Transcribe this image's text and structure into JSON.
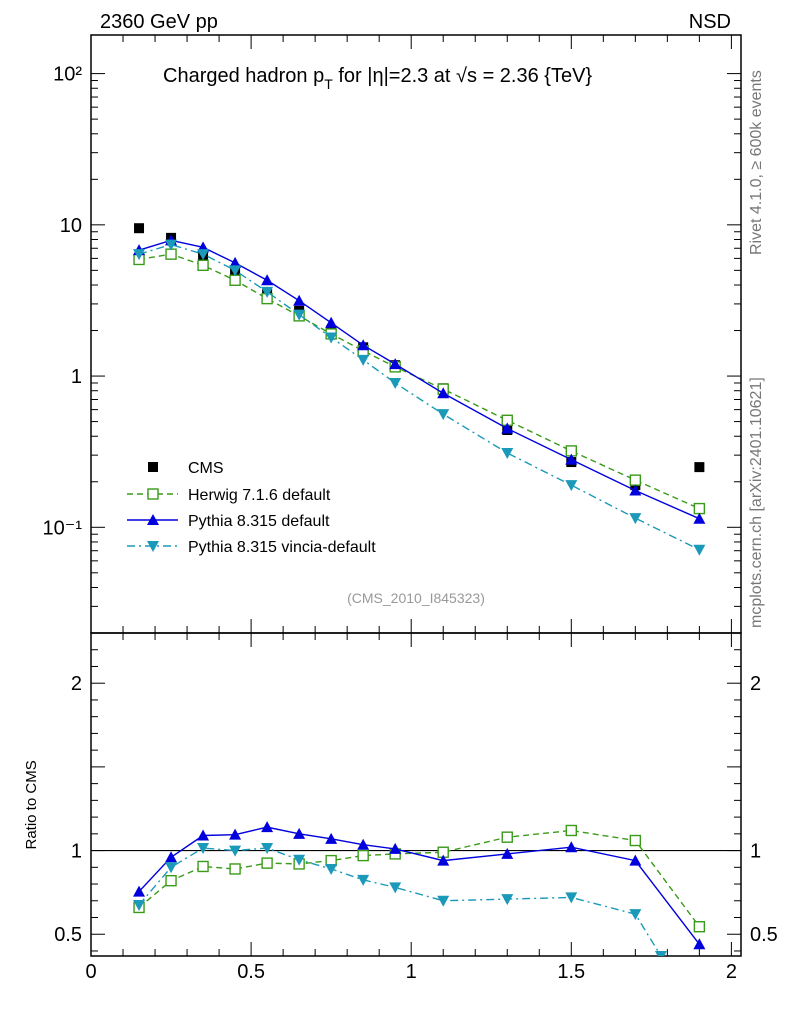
{
  "header": {
    "left": "2360 GeV pp",
    "right": "NSD"
  },
  "side_labels": {
    "rivet": "Rivet 4.1.0, ≥ 600k events",
    "mcplots": "mcplots.cern.ch [arXiv:2401.10621]"
  },
  "title_parts": {
    "a": "Charged hadron p",
    "sub": "T",
    "b": " for |η|=2.3 at √s = 2.36 {TeV}"
  },
  "analysis_tag": "(CMS_2010_I845323)",
  "colors": {
    "cms": "#000000",
    "herwig": "#3a9a1a",
    "pythia": "#0000dd",
    "vincia": "#1a9ab8"
  },
  "chart_data": [
    {
      "type": "scatter",
      "name": "main-spectrum",
      "yscale": "log",
      "xlim": [
        0,
        2.03
      ],
      "ylim": [
        0.02,
        180
      ],
      "ytick_labels": [
        "10⁻¹",
        "1",
        "10",
        "10²"
      ],
      "legend_position": "bottom-left",
      "series": [
        {
          "name": "CMS",
          "style": "square-filled",
          "x": [
            0.15,
            0.25,
            0.35,
            0.45,
            0.55,
            0.65,
            0.75,
            0.85,
            0.95,
            1.1,
            1.3,
            1.5,
            1.7,
            1.9
          ],
          "y": [
            9.5,
            8.2,
            6.2,
            5.0,
            3.5,
            2.7,
            2.0,
            1.55,
            1.18,
            0.83,
            0.44,
            0.27,
            0.19,
            0.25
          ]
        },
        {
          "name": "Herwig 7.1.6 default",
          "style": "square-open-dashed",
          "x": [
            0.15,
            0.25,
            0.35,
            0.45,
            0.55,
            0.65,
            0.75,
            0.85,
            0.95,
            1.1,
            1.3,
            1.5,
            1.7,
            1.9
          ],
          "y": [
            5.9,
            6.4,
            5.4,
            4.3,
            3.25,
            2.5,
            1.9,
            1.47,
            1.15,
            0.82,
            0.51,
            0.32,
            0.205,
            0.133
          ]
        },
        {
          "name": "Pythia 8.315 default",
          "style": "triangle-up-solid",
          "x": [
            0.15,
            0.25,
            0.35,
            0.45,
            0.55,
            0.65,
            0.75,
            0.85,
            0.95,
            1.1,
            1.3,
            1.5,
            1.7,
            1.9
          ],
          "y": [
            6.8,
            7.9,
            7.1,
            5.6,
            4.3,
            3.15,
            2.25,
            1.6,
            1.2,
            0.77,
            0.45,
            0.28,
            0.175,
            0.114
          ]
        },
        {
          "name": "Pythia 8.315 vincia-default",
          "style": "triangle-down-dashdot",
          "x": [
            0.15,
            0.25,
            0.35,
            0.45,
            0.55,
            0.65,
            0.75,
            0.85,
            0.95,
            1.1,
            1.3,
            1.5,
            1.7,
            1.9
          ],
          "y": [
            6.4,
            7.4,
            6.4,
            5.0,
            3.6,
            2.55,
            1.8,
            1.28,
            0.9,
            0.56,
            0.31,
            0.19,
            0.115,
            0.071
          ]
        }
      ]
    },
    {
      "type": "line",
      "name": "ratio",
      "ylabel": "Ratio to CMS",
      "xlim": [
        0,
        2.03
      ],
      "ylim": [
        0.37,
        2.3
      ],
      "reference_line": 1,
      "yticks": [
        0.5,
        1,
        2
      ],
      "ytick_labels": [
        "0.5",
        "1",
        "2"
      ],
      "xticks": [
        0,
        0.5,
        1,
        1.5,
        2
      ],
      "xtick_labels": [
        "0",
        "0.5",
        "1",
        "1.5",
        "2"
      ],
      "series": [
        {
          "name": "Herwig 7.1.6 default",
          "x": [
            0.15,
            0.25,
            0.35,
            0.45,
            0.55,
            0.65,
            0.75,
            0.85,
            0.95,
            1.1,
            1.3,
            1.5,
            1.7,
            1.9
          ],
          "y": [
            0.66,
            0.82,
            0.905,
            0.89,
            0.925,
            0.92,
            0.94,
            0.97,
            0.98,
            0.99,
            1.08,
            1.12,
            1.06,
            0.545
          ]
        },
        {
          "name": "Pythia 8.315 default",
          "x": [
            0.15,
            0.25,
            0.35,
            0.45,
            0.55,
            0.65,
            0.75,
            0.85,
            0.95,
            1.1,
            1.3,
            1.5,
            1.7,
            1.9
          ],
          "y": [
            0.755,
            0.96,
            1.09,
            1.095,
            1.14,
            1.1,
            1.07,
            1.035,
            1.01,
            0.94,
            0.98,
            1.02,
            0.94,
            0.44
          ]
        },
        {
          "name": "Pythia 8.315 vincia-default",
          "x": [
            0.15,
            0.25,
            0.35,
            0.45,
            0.55,
            0.65,
            0.75,
            0.85,
            0.95,
            1.1,
            1.3,
            1.5,
            1.7,
            1.78
          ],
          "y": [
            0.675,
            0.9,
            1.015,
            1.0,
            1.015,
            0.945,
            0.89,
            0.825,
            0.78,
            0.7,
            0.71,
            0.72,
            0.62,
            0.37
          ]
        }
      ]
    }
  ]
}
